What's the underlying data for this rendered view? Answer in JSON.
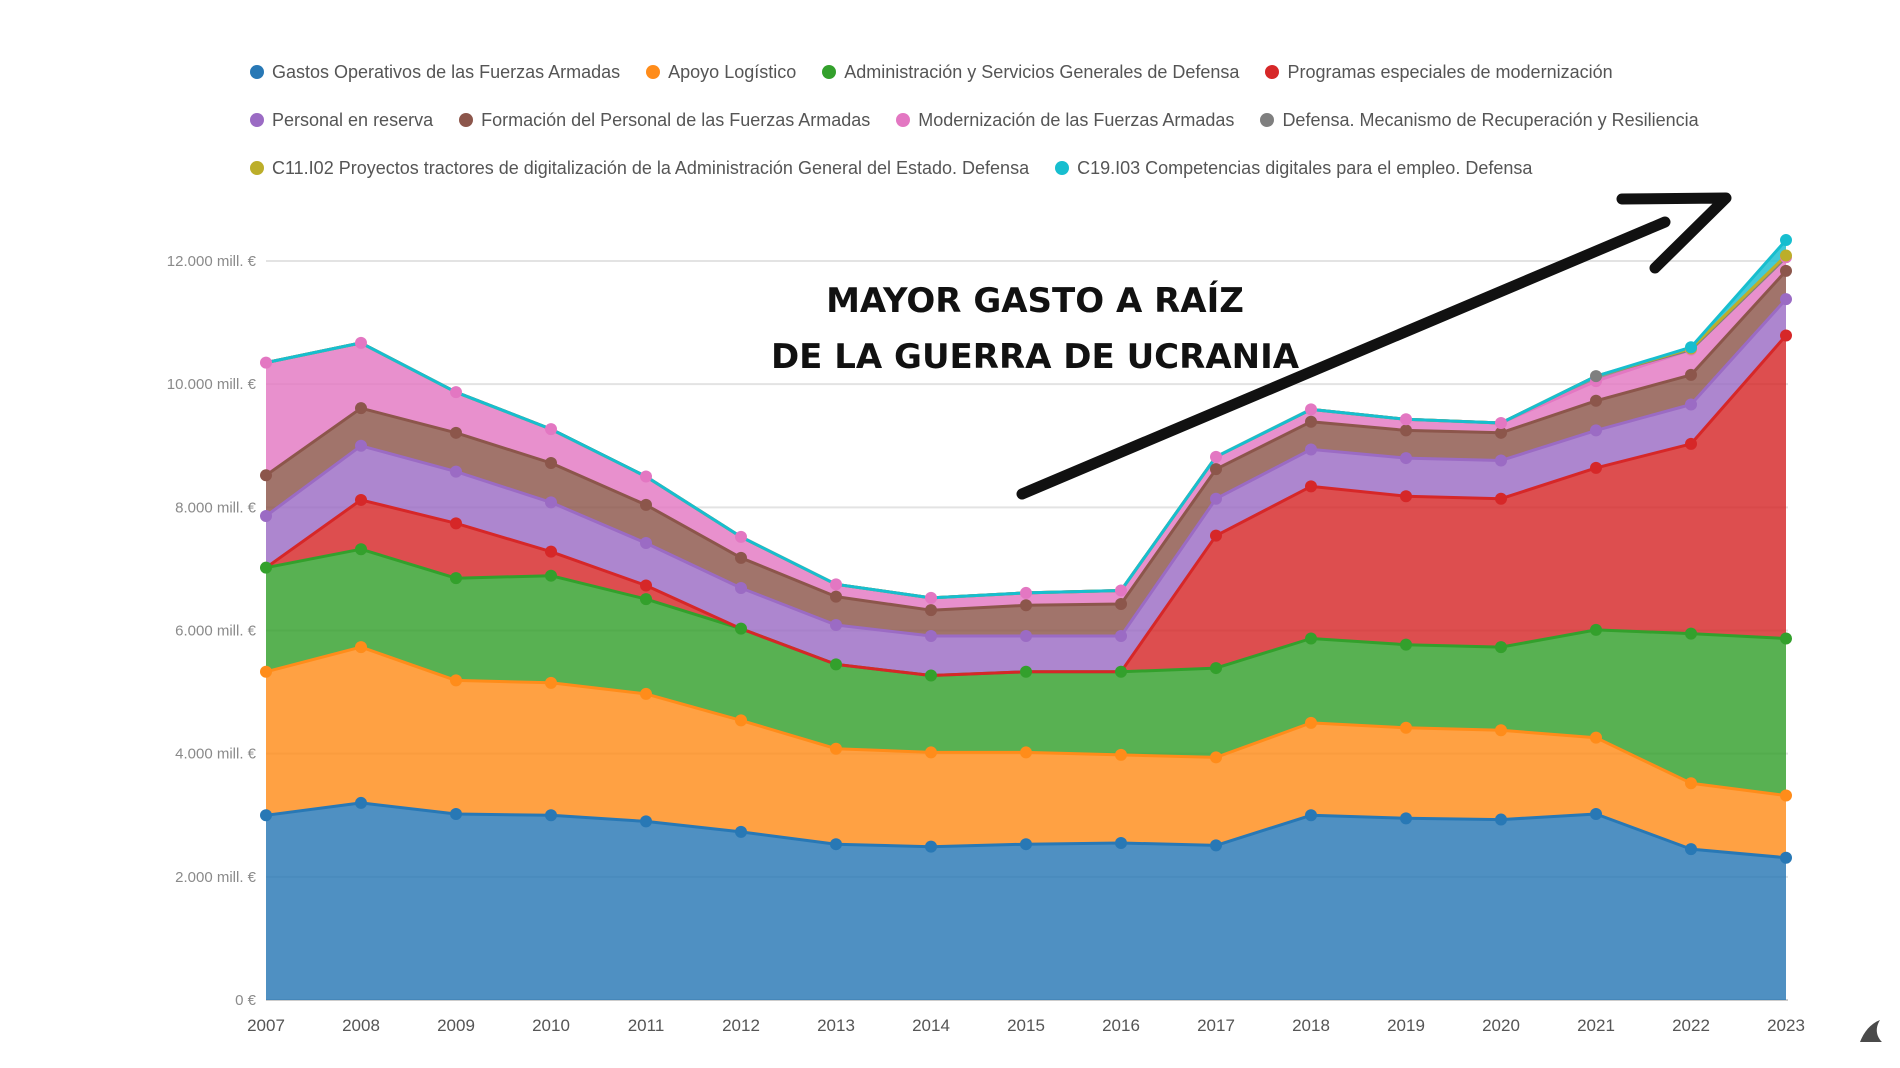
{
  "chart_data": {
    "type": "area",
    "stacked": true,
    "title": "",
    "xlabel": "",
    "ylabel": "",
    "x": [
      2007,
      2008,
      2009,
      2010,
      2011,
      2012,
      2013,
      2014,
      2015,
      2016,
      2017,
      2018,
      2019,
      2020,
      2021,
      2022,
      2023
    ],
    "x_tick_labels": [
      "2007",
      "2008",
      "2009",
      "2010",
      "2011",
      "2012",
      "2013",
      "2014",
      "2015",
      "2016",
      "2017",
      "2018",
      "2019",
      "2020",
      "2021",
      "2022",
      "2023"
    ],
    "ylim": [
      0,
      12000
    ],
    "y_ticks": [
      0,
      2000,
      4000,
      6000,
      8000,
      10000,
      12000
    ],
    "y_tick_labels": [
      "0 €",
      "2.000 mill. €",
      "4.000 mill. €",
      "6.000 mill. €",
      "8.000 mill. €",
      "10.000 mill. €",
      "12.000 mill. €"
    ],
    "grid": true,
    "legend_position": "top",
    "unit": "mill. €",
    "series": [
      {
        "name": "Gastos Operativos de las Fuerzas Armadas",
        "color": "#2878b5",
        "values": [
          3000,
          3200,
          3020,
          3000,
          2900,
          2730,
          2530,
          2490,
          2530,
          2550,
          2510,
          3000,
          2950,
          2930,
          3020,
          2450,
          2310
        ]
      },
      {
        "name": "Apoyo Logístico",
        "color": "#ff8c1a",
        "values": [
          2330,
          2530,
          2170,
          2150,
          2070,
          1810,
          1550,
          1530,
          1490,
          1430,
          1430,
          1500,
          1470,
          1450,
          1240,
          1070,
          1010
        ]
      },
      {
        "name": "Administración y Servicios Generales de Defensa",
        "color": "#33a02c",
        "values": [
          1690,
          1590,
          1660,
          1740,
          1540,
          1490,
          1370,
          1250,
          1310,
          1350,
          1450,
          1370,
          1350,
          1350,
          1750,
          2430,
          2550
        ]
      },
      {
        "name": "Programas especiales de modernización",
        "color": "#d62728",
        "values": [
          0,
          800,
          890,
          390,
          220,
          0,
          0,
          0,
          0,
          0,
          2150,
          2470,
          2410,
          2410,
          2630,
          3080,
          4920
        ]
      },
      {
        "name": "Personal en reserva",
        "color": "#9b6bc4",
        "values": [
          840,
          880,
          840,
          800,
          690,
          660,
          640,
          640,
          580,
          580,
          600,
          600,
          620,
          620,
          610,
          640,
          590
        ]
      },
      {
        "name": "Formación del Personal de las Fuerzas Armadas",
        "color": "#8c564b",
        "values": [
          660,
          610,
          630,
          640,
          620,
          490,
          460,
          420,
          500,
          520,
          480,
          450,
          450,
          450,
          480,
          480,
          460
        ]
      },
      {
        "name": "Modernización de las Fuerzas Armadas",
        "color": "#e377c2",
        "values": [
          1830,
          1060,
          660,
          550,
          460,
          340,
          200,
          200,
          200,
          220,
          200,
          200,
          180,
          160,
          320,
          410,
          220
        ]
      },
      {
        "name": "Defensa. Mecanismo de Recuperación y Resiliencia",
        "color": "#7f7f7f",
        "values": [
          0,
          0,
          0,
          0,
          0,
          0,
          0,
          0,
          0,
          0,
          0,
          0,
          0,
          0,
          80,
          0,
          0
        ]
      },
      {
        "name": "C11.I02 Proyectos tractores de digitalización de la Administración General del Estado. Defensa",
        "color": "#bcae2a",
        "values": [
          0,
          0,
          0,
          0,
          0,
          0,
          0,
          0,
          0,
          0,
          0,
          0,
          0,
          0,
          0,
          20,
          30
        ]
      },
      {
        "name": "C19.I03 Competencias digitales para el empleo. Defensa",
        "color": "#17becf",
        "values": [
          0,
          0,
          0,
          0,
          0,
          0,
          0,
          0,
          0,
          0,
          0,
          0,
          0,
          0,
          0,
          20,
          250
        ]
      }
    ],
    "annotations": [
      {
        "text_lines": [
          "MAYOR GASTO A RAÍZ",
          "DE LA GUERRA DE UCRANIA"
        ],
        "type": "text-with-arrow",
        "arrow_direction": "up-right"
      }
    ]
  },
  "annotation": {
    "line1": "MAYOR GASTO A RAÍZ",
    "line2": "DE LA GUERRA DE UCRANIA"
  },
  "legend": {
    "rows": [
      [
        0,
        1,
        2,
        3
      ],
      [
        4,
        5,
        6,
        7
      ],
      [
        8,
        9
      ]
    ]
  },
  "logo": {
    "icon": "shark-fin-icon",
    "color": "#4a4a4a"
  }
}
